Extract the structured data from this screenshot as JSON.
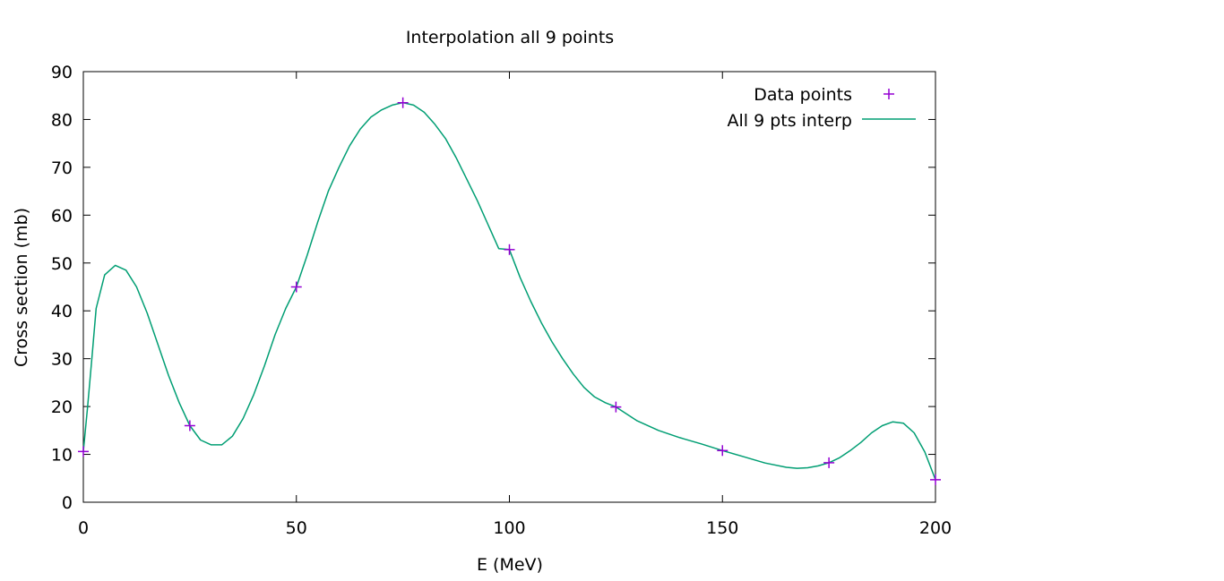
{
  "chart_data": {
    "type": "line",
    "title": "Interpolation all 9 points",
    "xlabel": "E (MeV)",
    "ylabel": "Cross section (mb)",
    "xlim": [
      0,
      200
    ],
    "ylim": [
      0,
      90
    ],
    "xticks": [
      0,
      50,
      100,
      150,
      200
    ],
    "yticks": [
      0,
      10,
      20,
      30,
      40,
      50,
      60,
      70,
      80,
      90
    ],
    "grid": false,
    "legend_position": "top-right",
    "series": [
      {
        "name": "Data points",
        "style": "points",
        "marker": "plus",
        "color": "#9400d3",
        "x": [
          0,
          25,
          50,
          75,
          100,
          125,
          150,
          175,
          200
        ],
        "y": [
          10.6,
          16.0,
          45.0,
          83.5,
          52.8,
          19.9,
          10.8,
          8.25,
          4.7
        ]
      },
      {
        "name": "All 9 pts interp",
        "style": "line",
        "color": "#009e73",
        "x": [
          0,
          1,
          2,
          3,
          5,
          7.5,
          10,
          12.5,
          15,
          17.5,
          20,
          22.5,
          25,
          27.5,
          30,
          32.5,
          35,
          37.5,
          40,
          42.5,
          45,
          47.5,
          50,
          52.5,
          55,
          57.5,
          60,
          62.5,
          65,
          67.5,
          70,
          72.5,
          75,
          77.5,
          80,
          82.5,
          85,
          87.5,
          90,
          92.5,
          95,
          97.5,
          100,
          102.5,
          105,
          107.5,
          110,
          112.5,
          115,
          117.5,
          120,
          122.5,
          125,
          130,
          135,
          140,
          145,
          150,
          155,
          160,
          165,
          167.5,
          170,
          172.5,
          175,
          177.5,
          180,
          182.5,
          185,
          187.5,
          190,
          192.5,
          195,
          197.5,
          200
        ],
        "y": [
          10.6,
          20.0,
          30.0,
          40.5,
          47.5,
          49.5,
          48.5,
          45.0,
          39.5,
          33.0,
          26.5,
          20.8,
          16.0,
          13.0,
          12.0,
          12.0,
          13.8,
          17.5,
          22.5,
          28.5,
          35.0,
          40.5,
          45.0,
          51.5,
          58.5,
          65.0,
          70.0,
          74.5,
          78.0,
          80.5,
          82.0,
          83.0,
          83.5,
          83.0,
          81.5,
          79.0,
          76.0,
          72.0,
          67.5,
          63.0,
          58.0,
          53.0,
          52.8,
          47.0,
          42.0,
          37.5,
          33.5,
          30.0,
          26.8,
          24.0,
          22.0,
          20.8,
          19.9,
          17.0,
          15.0,
          13.5,
          12.2,
          10.8,
          9.5,
          8.2,
          7.3,
          7.1,
          7.2,
          7.6,
          8.25,
          9.3,
          10.8,
          12.5,
          14.5,
          16.0,
          16.8,
          16.5,
          14.5,
          10.5,
          4.7
        ]
      }
    ]
  }
}
